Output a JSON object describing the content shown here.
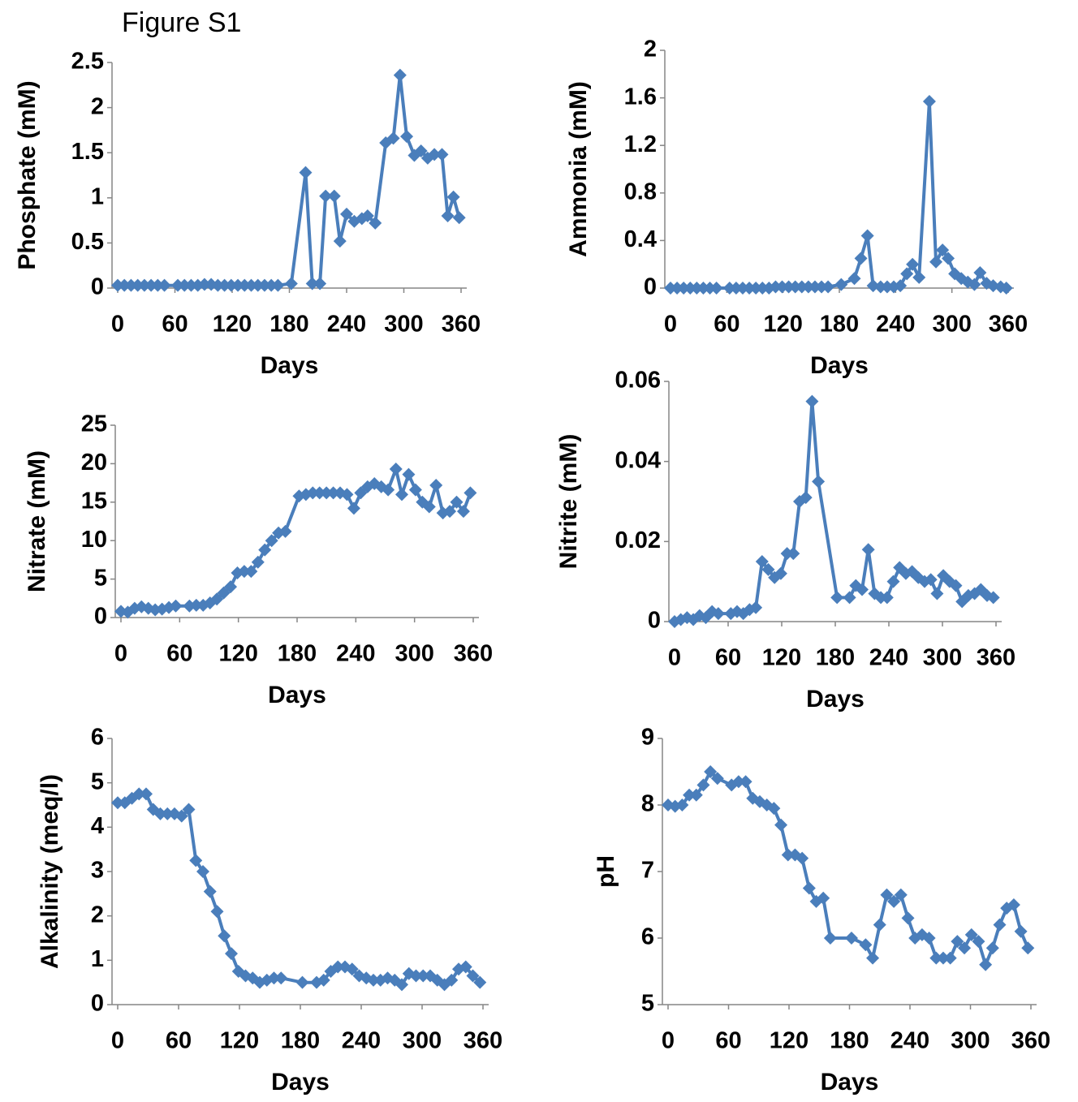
{
  "title": "Figure S1",
  "chart_data": [
    {
      "type": "line",
      "y_label": "Phosphate  (mM)",
      "x_label": "Days",
      "color": "#4a7ebb",
      "xlim": [
        0,
        360
      ],
      "xticks": [
        0,
        60,
        120,
        180,
        240,
        300,
        360
      ],
      "ylim": [
        0,
        2.5
      ],
      "yticks": [
        0,
        0.5,
        1,
        1.5,
        2,
        2.5
      ],
      "x": [
        0,
        7,
        14,
        21,
        28,
        35,
        42,
        49,
        63,
        70,
        77,
        84,
        91,
        98,
        105,
        112,
        119,
        126,
        133,
        140,
        147,
        154,
        161,
        168,
        182,
        197,
        204,
        212,
        218,
        227,
        233,
        240,
        248,
        256,
        262,
        270,
        281,
        289,
        296,
        303,
        311,
        318,
        325,
        332,
        340,
        346,
        352,
        358
      ],
      "values": [
        0.03,
        0.03,
        0.03,
        0.03,
        0.03,
        0.03,
        0.03,
        0.03,
        0.03,
        0.03,
        0.03,
        0.03,
        0.04,
        0.04,
        0.03,
        0.03,
        0.03,
        0.03,
        0.03,
        0.03,
        0.03,
        0.03,
        0.03,
        0.03,
        0.05,
        1.28,
        0.05,
        0.05,
        1.02,
        1.02,
        0.52,
        0.82,
        0.74,
        0.77,
        0.8,
        0.72,
        1.61,
        1.66,
        2.36,
        1.68,
        1.47,
        1.52,
        1.44,
        1.48,
        1.48,
        0.8,
        1.01,
        0.78
      ]
    },
    {
      "type": "line",
      "y_label": "Ammonia  (mM)",
      "x_label": "Days",
      "color": "#4a7ebb",
      "xlim": [
        0,
        360
      ],
      "xticks": [
        0,
        60,
        120,
        180,
        240,
        300,
        360
      ],
      "ylim": [
        0,
        2
      ],
      "yticks": [
        0,
        0.4,
        0.8,
        1.2,
        1.6,
        2
      ],
      "x": [
        0,
        7,
        14,
        21,
        28,
        35,
        42,
        49,
        63,
        70,
        77,
        84,
        91,
        98,
        105,
        112,
        119,
        126,
        133,
        140,
        147,
        154,
        161,
        168,
        182,
        196,
        203,
        210,
        216,
        224,
        231,
        238,
        245,
        252,
        258,
        265,
        276,
        283,
        290,
        296,
        303,
        310,
        317,
        324,
        330,
        337,
        344,
        352,
        358
      ],
      "values": [
        0,
        0,
        0,
        0,
        0,
        0,
        0,
        0,
        0,
        0,
        0,
        0,
        0,
        0,
        0,
        0.01,
        0.01,
        0.01,
        0.01,
        0.01,
        0.01,
        0.01,
        0.01,
        0.01,
        0.03,
        0.08,
        0.25,
        0.44,
        0.02,
        0.01,
        0.01,
        0.01,
        0.02,
        0.12,
        0.2,
        0.09,
        1.57,
        0.22,
        0.32,
        0.25,
        0.12,
        0.08,
        0.05,
        0.03,
        0.13,
        0.04,
        0.02,
        0.01,
        0
      ]
    },
    {
      "type": "line",
      "y_label": "Nitrate  (mM)",
      "x_label": "Days",
      "color": "#4a7ebb",
      "xlim": [
        0,
        360
      ],
      "xticks": [
        0,
        60,
        120,
        180,
        240,
        300,
        360
      ],
      "ylim": [
        0,
        25
      ],
      "yticks": [
        0,
        5,
        10,
        15,
        20,
        25
      ],
      "x": [
        0,
        7,
        14,
        21,
        28,
        35,
        42,
        49,
        56,
        70,
        77,
        84,
        91,
        98,
        105,
        112,
        119,
        126,
        133,
        140,
        147,
        154,
        161,
        168,
        182,
        189,
        196,
        203,
        210,
        217,
        224,
        231,
        238,
        245,
        252,
        259,
        266,
        273,
        281,
        287,
        294,
        301,
        308,
        315,
        322,
        329,
        336,
        343,
        350,
        357
      ],
      "values": [
        0.8,
        0.7,
        1.2,
        1.4,
        1.2,
        1.0,
        1.1,
        1.3,
        1.5,
        1.5,
        1.6,
        1.6,
        1.9,
        2.4,
        3.2,
        4.0,
        5.8,
        6.0,
        6.0,
        7.2,
        8.8,
        10.0,
        11.0,
        11.2,
        15.8,
        16.0,
        16.2,
        16.2,
        16.2,
        16.2,
        16.2,
        16.0,
        14.2,
        16.2,
        17.0,
        17.4,
        17.0,
        16.6,
        19.3,
        16.0,
        18.6,
        16.6,
        15.0,
        14.4,
        17.2,
        13.6,
        13.8,
        15.0,
        13.8,
        16.2
      ]
    },
    {
      "type": "line",
      "y_label": "Nitrite  (mM)",
      "x_label": "Days",
      "color": "#4a7ebb",
      "xlim": [
        0,
        360
      ],
      "xticks": [
        0,
        60,
        120,
        180,
        240,
        300,
        360
      ],
      "ylim": [
        0,
        0.06
      ],
      "yticks": [
        0,
        0.02,
        0.04,
        0.06
      ],
      "x": [
        0,
        7,
        14,
        21,
        28,
        35,
        42,
        49,
        63,
        70,
        77,
        84,
        91,
        98,
        105,
        112,
        119,
        126,
        133,
        140,
        147,
        154,
        161,
        182,
        196,
        203,
        210,
        217,
        224,
        231,
        238,
        245,
        252,
        259,
        266,
        273,
        280,
        287,
        294,
        301,
        308,
        315,
        322,
        329,
        336,
        343,
        350,
        357
      ],
      "values": [
        0,
        0.0005,
        0.001,
        0.0005,
        0.0015,
        0.001,
        0.0025,
        0.002,
        0.002,
        0.0025,
        0.002,
        0.003,
        0.0035,
        0.015,
        0.013,
        0.011,
        0.012,
        0.017,
        0.017,
        0.03,
        0.031,
        0.055,
        0.035,
        0.006,
        0.006,
        0.009,
        0.008,
        0.018,
        0.007,
        0.006,
        0.006,
        0.01,
        0.0135,
        0.012,
        0.0125,
        0.011,
        0.01,
        0.0105,
        0.007,
        0.0115,
        0.01,
        0.009,
        0.005,
        0.0065,
        0.007,
        0.008,
        0.0065,
        0.006
      ]
    },
    {
      "type": "line",
      "y_label": "Alkalinity (meq/l)",
      "x_label": "Days",
      "color": "#4a7ebb",
      "xlim": [
        0,
        360
      ],
      "xticks": [
        0,
        60,
        120,
        180,
        240,
        300,
        360
      ],
      "ylim": [
        0,
        6
      ],
      "yticks": [
        0,
        1,
        2,
        3,
        4,
        5,
        6
      ],
      "x": [
        0,
        7,
        14,
        21,
        28,
        35,
        42,
        49,
        56,
        63,
        70,
        77,
        84,
        91,
        98,
        105,
        112,
        119,
        126,
        133,
        140,
        147,
        154,
        161,
        182,
        196,
        203,
        210,
        217,
        224,
        231,
        238,
        245,
        252,
        259,
        266,
        273,
        280,
        287,
        294,
        301,
        308,
        315,
        322,
        329,
        336,
        343,
        350,
        357
      ],
      "values": [
        4.55,
        4.55,
        4.65,
        4.75,
        4.75,
        4.4,
        4.3,
        4.3,
        4.3,
        4.25,
        4.4,
        3.25,
        3.0,
        2.55,
        2.1,
        1.55,
        1.15,
        0.75,
        0.65,
        0.6,
        0.5,
        0.55,
        0.6,
        0.6,
        0.5,
        0.5,
        0.55,
        0.75,
        0.85,
        0.85,
        0.8,
        0.65,
        0.6,
        0.55,
        0.55,
        0.6,
        0.55,
        0.45,
        0.7,
        0.65,
        0.65,
        0.65,
        0.55,
        0.45,
        0.55,
        0.8,
        0.85,
        0.65,
        0.5
      ]
    },
    {
      "type": "line",
      "y_label": "pH",
      "x_label": "Days",
      "color": "#4a7ebb",
      "xlim": [
        0,
        360
      ],
      "xticks": [
        0,
        60,
        120,
        180,
        240,
        300,
        360
      ],
      "ylim": [
        5,
        9
      ],
      "yticks": [
        5,
        6,
        7,
        8,
        9
      ],
      "x": [
        0,
        7,
        14,
        21,
        28,
        35,
        42,
        49,
        63,
        70,
        77,
        84,
        91,
        98,
        105,
        112,
        119,
        126,
        133,
        140,
        147,
        154,
        161,
        182,
        196,
        203,
        210,
        217,
        224,
        231,
        238,
        245,
        252,
        259,
        266,
        273,
        280,
        287,
        294,
        301,
        308,
        315,
        322,
        329,
        336,
        343,
        350,
        357
      ],
      "values": [
        8.0,
        7.98,
        8.0,
        8.15,
        8.15,
        8.3,
        8.5,
        8.4,
        8.3,
        8.35,
        8.35,
        8.1,
        8.05,
        8.0,
        7.95,
        7.7,
        7.25,
        7.25,
        7.2,
        6.75,
        6.55,
        6.6,
        6.0,
        6.0,
        5.9,
        5.7,
        6.2,
        6.65,
        6.55,
        6.65,
        6.3,
        6.0,
        6.05,
        6.0,
        5.7,
        5.7,
        5.7,
        5.95,
        5.85,
        6.05,
        5.95,
        5.6,
        5.85,
        6.2,
        6.45,
        6.5,
        6.1,
        5.85
      ]
    }
  ]
}
